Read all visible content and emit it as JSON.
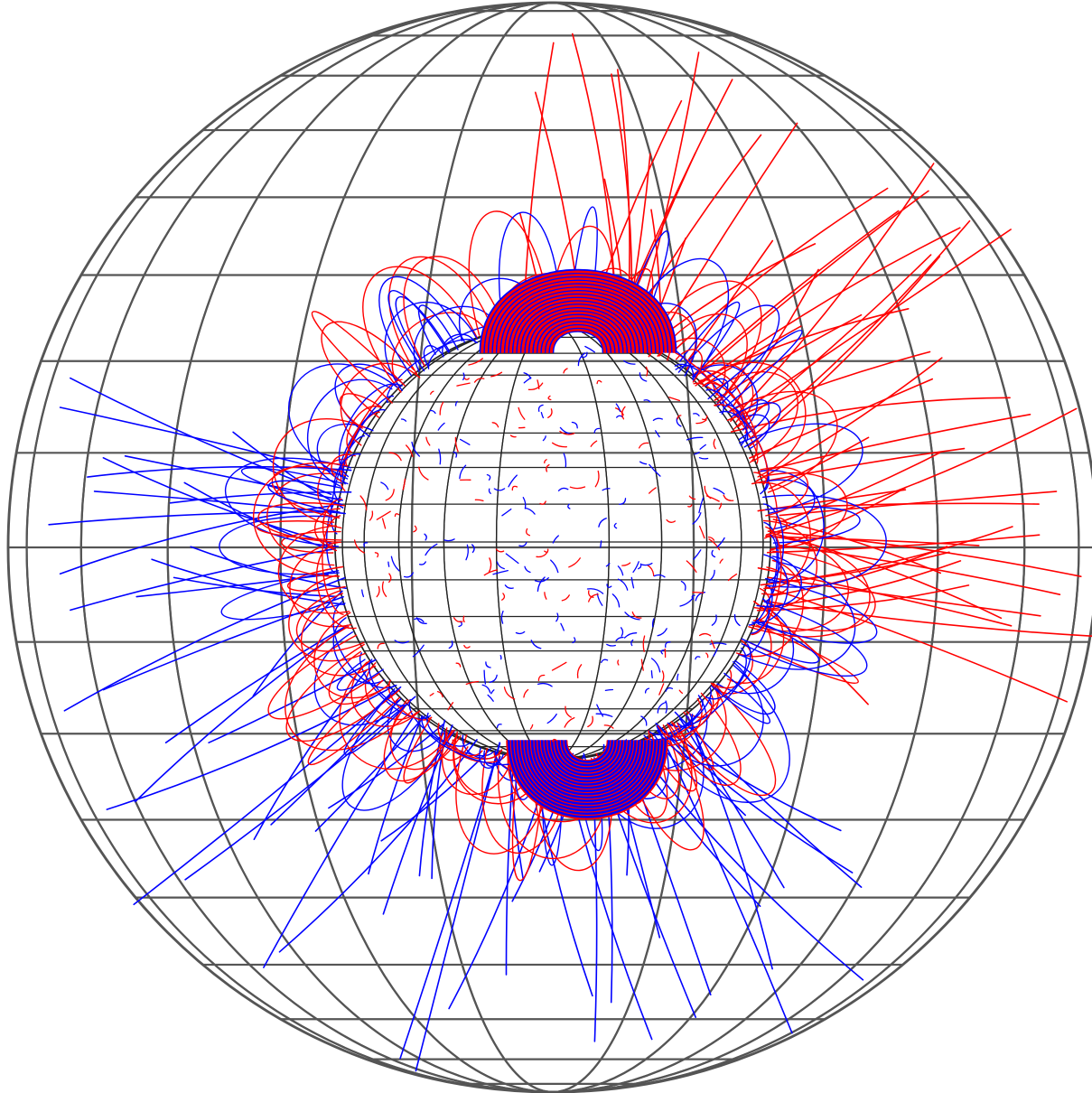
{
  "figure": {
    "kind": "magnetic field line extrapolation on a spherical grid",
    "source_surface_ratio": 2.5,
    "outer_grid": {
      "meridians": 24,
      "parallel_spacing_deg": 10
    },
    "inner_grid": {
      "meridians": 24,
      "parallel_spacing_deg": 10
    },
    "colors": {
      "background": "#ffffff",
      "grid": "#555555",
      "inner_grid": "#222222",
      "positive_polarity": "#ff0000",
      "negative_polarity": "#0000ff"
    },
    "field_lines": {
      "open_positive": 60,
      "open_negative": 60,
      "closed_loops": 220,
      "dense_bundles": 3
    }
  }
}
